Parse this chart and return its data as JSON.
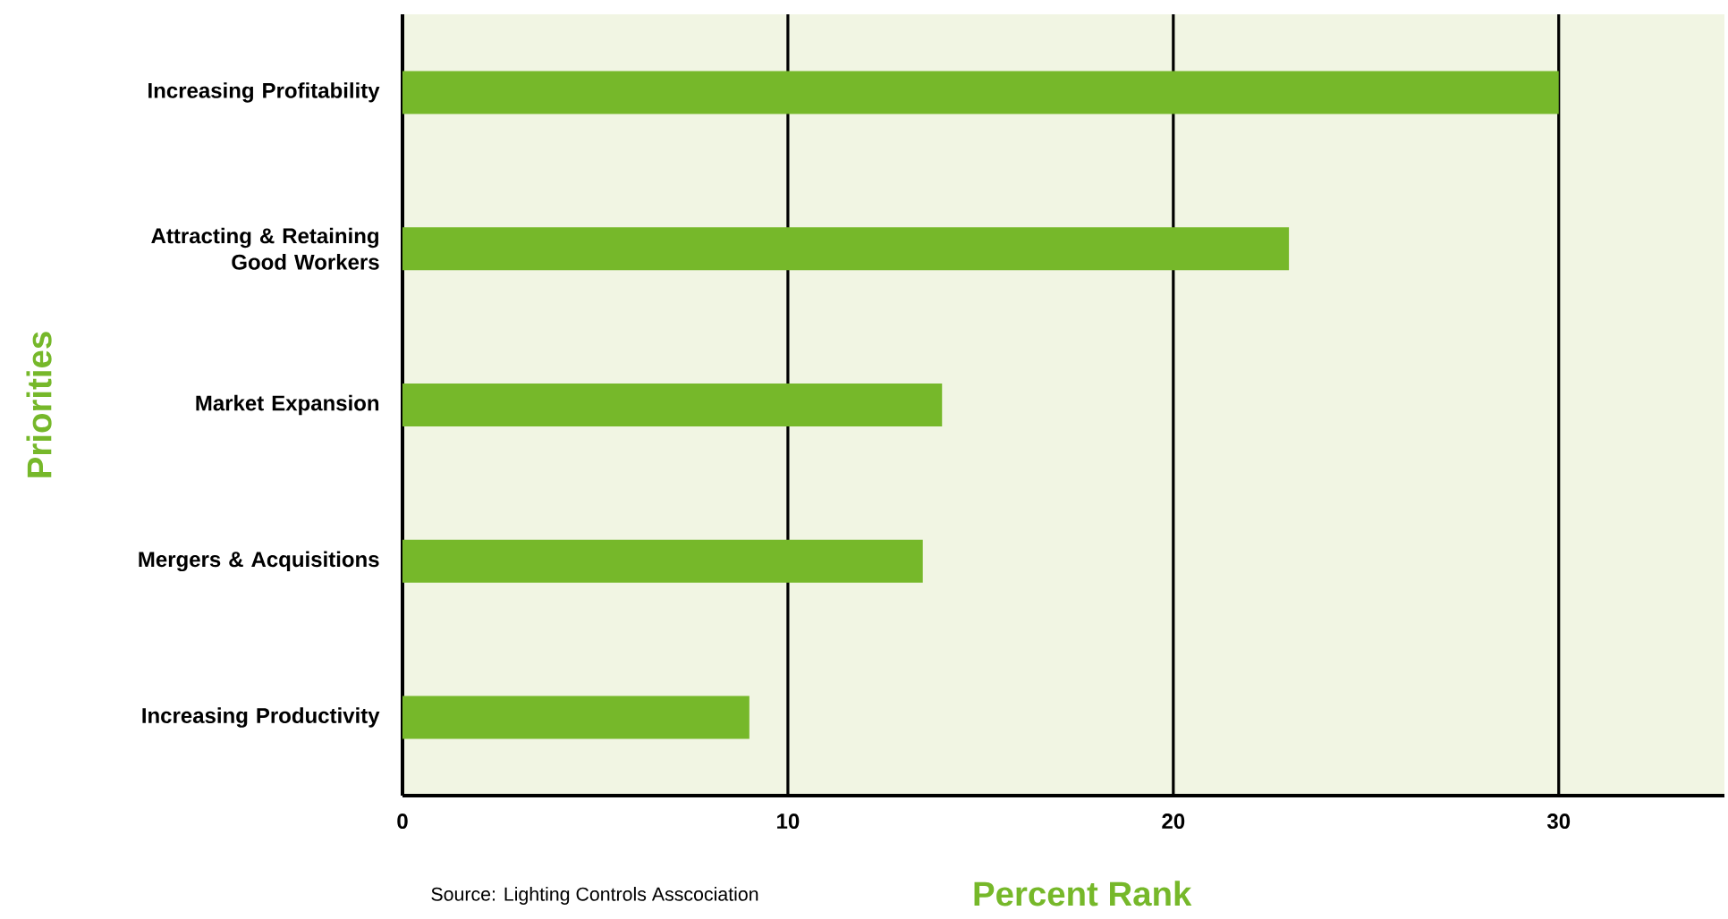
{
  "chart_data": {
    "type": "bar",
    "orientation": "horizontal",
    "categories": [
      "Increasing Profitability",
      "Attracting & Retaining Good Workers",
      "Market Expansion",
      "Mergers & Acquisitions",
      "Increasing Productivity"
    ],
    "values": [
      30,
      23,
      14,
      13.5,
      9
    ],
    "color": "#76b82a",
    "xlim": [
      0,
      34.3
    ],
    "xticks": [
      0,
      10,
      20,
      30
    ],
    "xlabel": "Percent Rank",
    "ylabel": "Priorities",
    "grid": "x",
    "annotations": [
      "Source: Lighting Controls Asscociation"
    ]
  }
}
